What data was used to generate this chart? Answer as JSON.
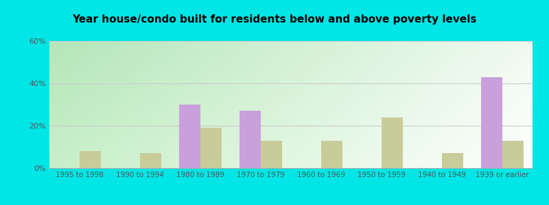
{
  "title": "Year house/condo built for residents below and above poverty levels",
  "categories": [
    "1995 to 1998",
    "1990 to 1994",
    "1980 to 1989",
    "1970 to 1979",
    "1960 to 1969",
    "1950 to 1959",
    "1940 to 1949",
    "1939 or earlier"
  ],
  "below_poverty": [
    0,
    0,
    30,
    27,
    0,
    0,
    0,
    43
  ],
  "above_poverty": [
    8,
    7,
    19,
    13,
    13,
    24,
    7,
    13
  ],
  "below_color": "#c9a0dc",
  "above_color": "#c8cc99",
  "ylim": [
    0,
    60
  ],
  "yticks": [
    0,
    20,
    40,
    60
  ],
  "ytick_labels": [
    "0%",
    "20%",
    "40%",
    "60%"
  ],
  "bar_width": 0.35,
  "outer_bg": "#00e5e5",
  "gradient_topleft": [
    180,
    230,
    185
  ],
  "gradient_topright": [
    240,
    250,
    240
  ],
  "gradient_bottomleft": [
    200,
    240,
    200
  ],
  "gradient_bottomright": [
    255,
    255,
    255
  ],
  "title_fontsize": 11,
  "tick_fontsize": 7.5,
  "ytick_fontsize": 8
}
